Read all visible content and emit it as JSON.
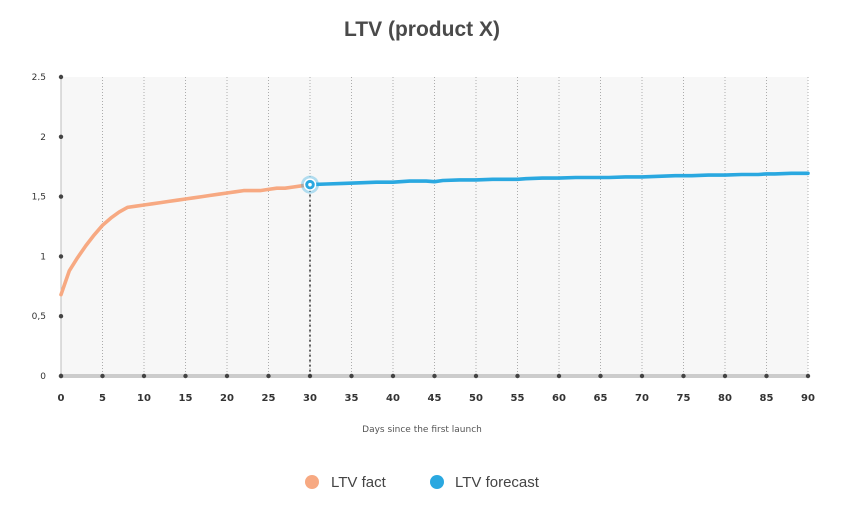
{
  "chart_data": {
    "type": "line",
    "title": "LTV (product X)",
    "xlabel": "Days since the first launch",
    "ylabel": "",
    "xlim": [
      0,
      90
    ],
    "ylim": [
      0,
      2.5
    ],
    "x_ticks": [
      {
        "value": 0,
        "label": "0"
      },
      {
        "value": 5,
        "label": "5"
      },
      {
        "value": 10,
        "label": "10"
      },
      {
        "value": 15,
        "label": "15"
      },
      {
        "value": 20,
        "label": "20"
      },
      {
        "value": 25,
        "label": "25"
      },
      {
        "value": 30,
        "label": "30"
      },
      {
        "value": 35,
        "label": "35"
      },
      {
        "value": 40,
        "label": "40"
      },
      {
        "value": 45,
        "label": "45"
      },
      {
        "value": 50,
        "label": "50"
      },
      {
        "value": 55,
        "label": "55"
      },
      {
        "value": 60,
        "label": "60"
      },
      {
        "value": 65,
        "label": "65"
      },
      {
        "value": 70,
        "label": "70"
      },
      {
        "value": 75,
        "label": "75"
      },
      {
        "value": 80,
        "label": "80"
      },
      {
        "value": 85,
        "label": "85"
      },
      {
        "value": 90,
        "label": "90"
      }
    ],
    "y_ticks": [
      {
        "value": 0,
        "label": "0"
      },
      {
        "value": 0.5,
        "label": "0,5"
      },
      {
        "value": 1,
        "label": "1"
      },
      {
        "value": 1.5,
        "label": "1,5"
      },
      {
        "value": 2,
        "label": "2"
      },
      {
        "value": 2.5,
        "label": "2.5"
      }
    ],
    "grid": "vertical-dotted",
    "legend_position": "bottom-center",
    "highlight": {
      "x": 30,
      "y": 1.6
    },
    "series": [
      {
        "name": "LTV fact",
        "color": "#f7a982",
        "x": [
          0,
          1,
          2,
          3,
          4,
          5,
          6,
          7,
          8,
          9,
          10,
          11,
          12,
          13,
          14,
          15,
          16,
          17,
          18,
          19,
          20,
          21,
          22,
          23,
          24,
          25,
          26,
          27,
          28,
          29,
          30
        ],
        "y": [
          0.68,
          0.88,
          0.99,
          1.09,
          1.18,
          1.26,
          1.32,
          1.37,
          1.41,
          1.42,
          1.43,
          1.44,
          1.45,
          1.46,
          1.47,
          1.48,
          1.49,
          1.5,
          1.51,
          1.52,
          1.53,
          1.54,
          1.55,
          1.55,
          1.55,
          1.56,
          1.57,
          1.57,
          1.58,
          1.59,
          1.6
        ]
      },
      {
        "name": "LTV forecast",
        "color": "#2aa8e0",
        "x": [
          30,
          32,
          34,
          36,
          38,
          40,
          42,
          44,
          45,
          46,
          48,
          50,
          52,
          54,
          55,
          56,
          58,
          60,
          62,
          64,
          65,
          66,
          68,
          70,
          72,
          74,
          75,
          76,
          78,
          80,
          82,
          84,
          85,
          86,
          88,
          90
        ],
        "y": [
          1.6,
          1.605,
          1.61,
          1.615,
          1.62,
          1.62,
          1.63,
          1.63,
          1.625,
          1.635,
          1.64,
          1.64,
          1.645,
          1.645,
          1.645,
          1.65,
          1.655,
          1.655,
          1.66,
          1.66,
          1.66,
          1.66,
          1.665,
          1.665,
          1.67,
          1.675,
          1.675,
          1.675,
          1.68,
          1.68,
          1.685,
          1.685,
          1.69,
          1.69,
          1.695,
          1.695
        ]
      }
    ]
  }
}
